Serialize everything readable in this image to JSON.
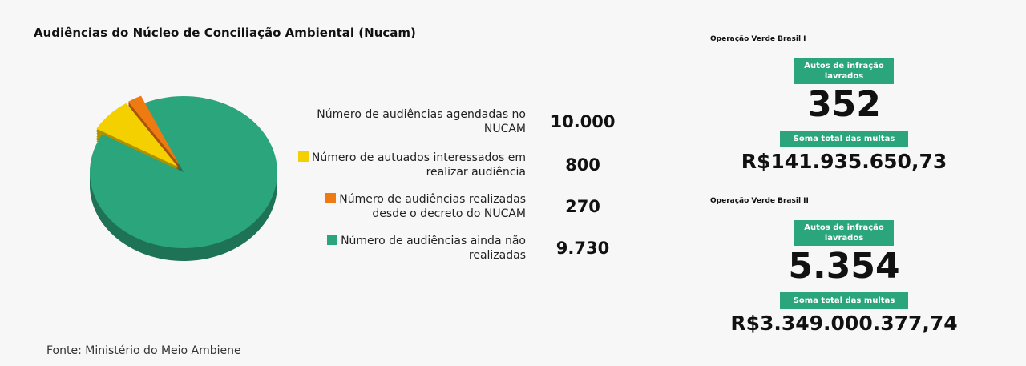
{
  "chart_data": {
    "type": "pie",
    "title": "Audiências do Núcleo de Conciliação Ambiental (Nucam)",
    "categories": [
      "Número de autuados interessados em realizar audiência",
      "Número de audiências realizadas desde o decreto do NUCAM",
      "Número de audiências ainda não realizadas"
    ],
    "values": [
      800,
      270,
      9730
    ],
    "value_labels": [
      "800",
      "270",
      "9.730"
    ],
    "colors": [
      "#f5d000",
      "#ef7a12",
      "#2ba57c"
    ]
  },
  "total": {
    "label": "Número de audiências agendadas no NUCAM",
    "value": "10.000"
  },
  "operations": [
    {
      "title": "Operação Verde Brasil I",
      "count_label": "Autos de infração lavrados",
      "count": "352",
      "sum_label": "Soma total das multas",
      "sum": "R$141.935.650,73"
    },
    {
      "title": "Operação Verde Brasil II",
      "count_label": "Autos de infração lavrados",
      "count": "5.354",
      "sum_label": "Soma total das multas",
      "sum": "R$3.349.000.377,74"
    }
  ],
  "source": "Fonte: Ministério do Meio Ambiene"
}
